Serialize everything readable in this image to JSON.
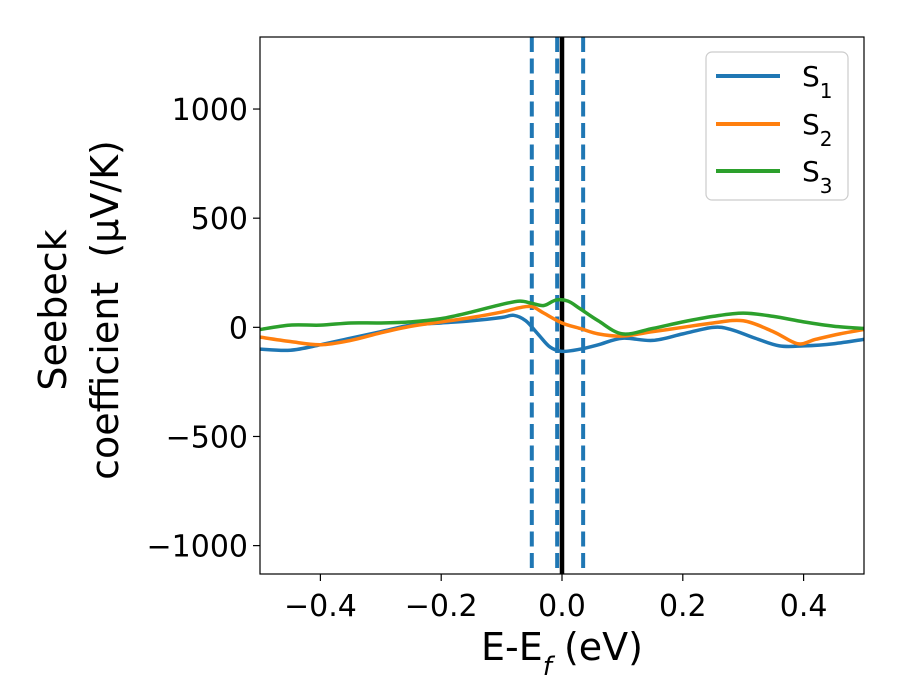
{
  "chart_data": {
    "type": "line",
    "title": "",
    "xlabel": "E-E_f (eV)",
    "xlabel_parts": {
      "main": "E-E",
      "sub": "f",
      "unit": " (eV)"
    },
    "ylabel": "Seebeck coefficient (μV/K)",
    "ylabel_lines": [
      "Seebeck",
      "coefficient  (μV/K)"
    ],
    "xlim": [
      -0.5,
      0.5
    ],
    "ylim": [
      -1130,
      1330
    ],
    "xticks": [
      -0.4,
      -0.2,
      0.0,
      0.2,
      0.4
    ],
    "xtick_labels": [
      "−0.4",
      "−0.2",
      "0.0",
      "0.2",
      "0.4"
    ],
    "yticks": [
      -1000,
      -500,
      0,
      500,
      1000
    ],
    "ytick_labels": [
      "−1000",
      "−500",
      "0",
      "500",
      "1000"
    ],
    "grid": false,
    "legend_position": "top-right",
    "vertical_lines": [
      {
        "x": -0.05,
        "style": "dashed",
        "color": "#1f77b4"
      },
      {
        "x": -0.008,
        "style": "dashed",
        "color": "#1f77b4"
      },
      {
        "x": 0.035,
        "style": "dashed",
        "color": "#1f77b4"
      },
      {
        "x": 0.0,
        "style": "solid",
        "color": "#000000"
      }
    ],
    "series": [
      {
        "name": "S1",
        "label_main": "S",
        "label_sub": "1",
        "color": "#1f77b4",
        "x": [
          -0.5,
          -0.45,
          -0.4,
          -0.35,
          -0.3,
          -0.25,
          -0.2,
          -0.15,
          -0.1,
          -0.08,
          -0.06,
          -0.04,
          -0.02,
          0.0,
          0.03,
          0.06,
          0.1,
          0.15,
          0.2,
          0.25,
          0.28,
          0.32,
          0.36,
          0.4,
          0.45,
          0.5
        ],
        "y": [
          -100,
          -105,
          -80,
          -50,
          -20,
          10,
          20,
          30,
          45,
          55,
          30,
          -30,
          -90,
          -110,
          -100,
          -80,
          -50,
          -60,
          -30,
          0,
          -10,
          -50,
          -85,
          -85,
          -75,
          -55
        ]
      },
      {
        "name": "S2",
        "label_main": "S",
        "label_sub": "2",
        "color": "#ff7f0e",
        "x": [
          -0.5,
          -0.45,
          -0.4,
          -0.35,
          -0.3,
          -0.25,
          -0.2,
          -0.15,
          -0.1,
          -0.07,
          -0.05,
          -0.03,
          0.0,
          0.03,
          0.06,
          0.1,
          0.15,
          0.2,
          0.25,
          0.3,
          0.35,
          0.39,
          0.42,
          0.46,
          0.5
        ],
        "y": [
          -45,
          -65,
          -80,
          -60,
          -25,
          5,
          25,
          45,
          70,
          90,
          95,
          65,
          20,
          -5,
          -30,
          -40,
          -20,
          0,
          20,
          30,
          -20,
          -75,
          -55,
          -30,
          -10
        ]
      },
      {
        "name": "S3",
        "label_main": "S",
        "label_sub": "3",
        "color": "#2ca02c",
        "x": [
          -0.5,
          -0.45,
          -0.4,
          -0.35,
          -0.3,
          -0.25,
          -0.2,
          -0.15,
          -0.1,
          -0.07,
          -0.05,
          -0.03,
          -0.01,
          0.01,
          0.03,
          0.06,
          0.1,
          0.15,
          0.2,
          0.25,
          0.3,
          0.35,
          0.4,
          0.45,
          0.5
        ],
        "y": [
          -10,
          10,
          10,
          20,
          20,
          25,
          40,
          70,
          105,
          120,
          110,
          100,
          125,
          120,
          85,
          30,
          -30,
          -5,
          25,
          50,
          65,
          50,
          25,
          5,
          -5
        ]
      }
    ]
  }
}
